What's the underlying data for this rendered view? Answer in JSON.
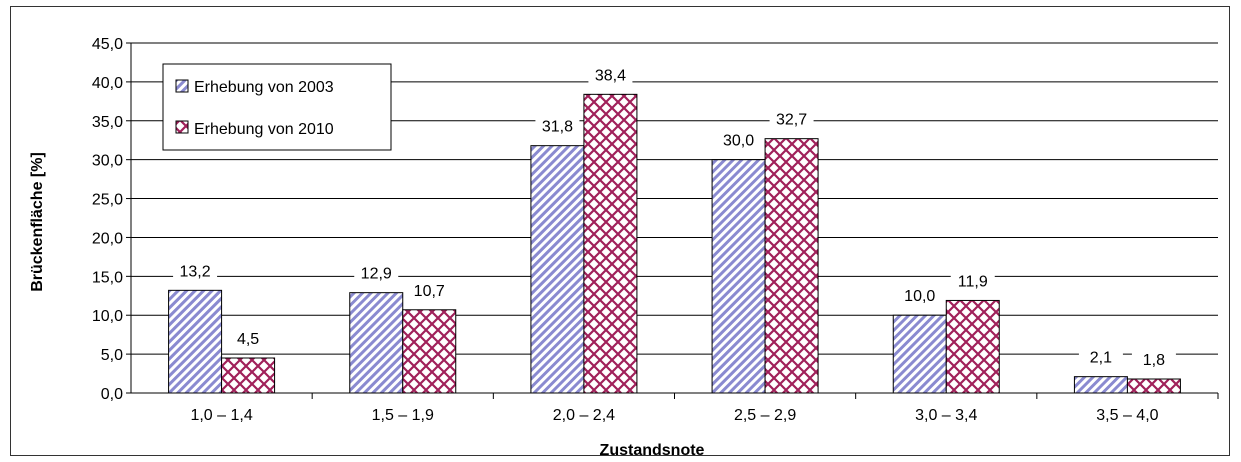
{
  "chart_data": {
    "type": "bar",
    "xlabel": "Zustandsnote",
    "ylabel": "Brückenfläche [%]",
    "ylim": [
      0,
      45
    ],
    "ytick_step": 5,
    "ytick_labels": [
      "0,0",
      "5,0",
      "10,0",
      "15,0",
      "20,0",
      "25,0",
      "30,0",
      "35,0",
      "40,0",
      "45,0"
    ],
    "grid": "horizontal",
    "legend_position": "top-left",
    "categories": [
      "1,0 – 1,4",
      "1,5 – 1,9",
      "2,0 – 2,4",
      "2,5 – 2,9",
      "3,0 – 3,4",
      "3,5 – 4,0"
    ],
    "series": [
      {
        "name": "Erhebung von 2003",
        "values": [
          13.2,
          12.9,
          31.8,
          30.0,
          10.0,
          2.1
        ],
        "labels": [
          "13,2",
          "12,9",
          "31,8",
          "30,0",
          "10,0",
          "2,1"
        ],
        "color": "#8a8ad0",
        "pattern": "diagonal-stripes"
      },
      {
        "name": "Erhebung von 2010",
        "values": [
          4.5,
          10.7,
          38.4,
          32.7,
          11.9,
          1.8
        ],
        "labels": [
          "4,5",
          "10,7",
          "38,4",
          "32,7",
          "11,9",
          "1,8"
        ],
        "color": "#a0205a",
        "pattern": "crosshatch"
      }
    ]
  }
}
